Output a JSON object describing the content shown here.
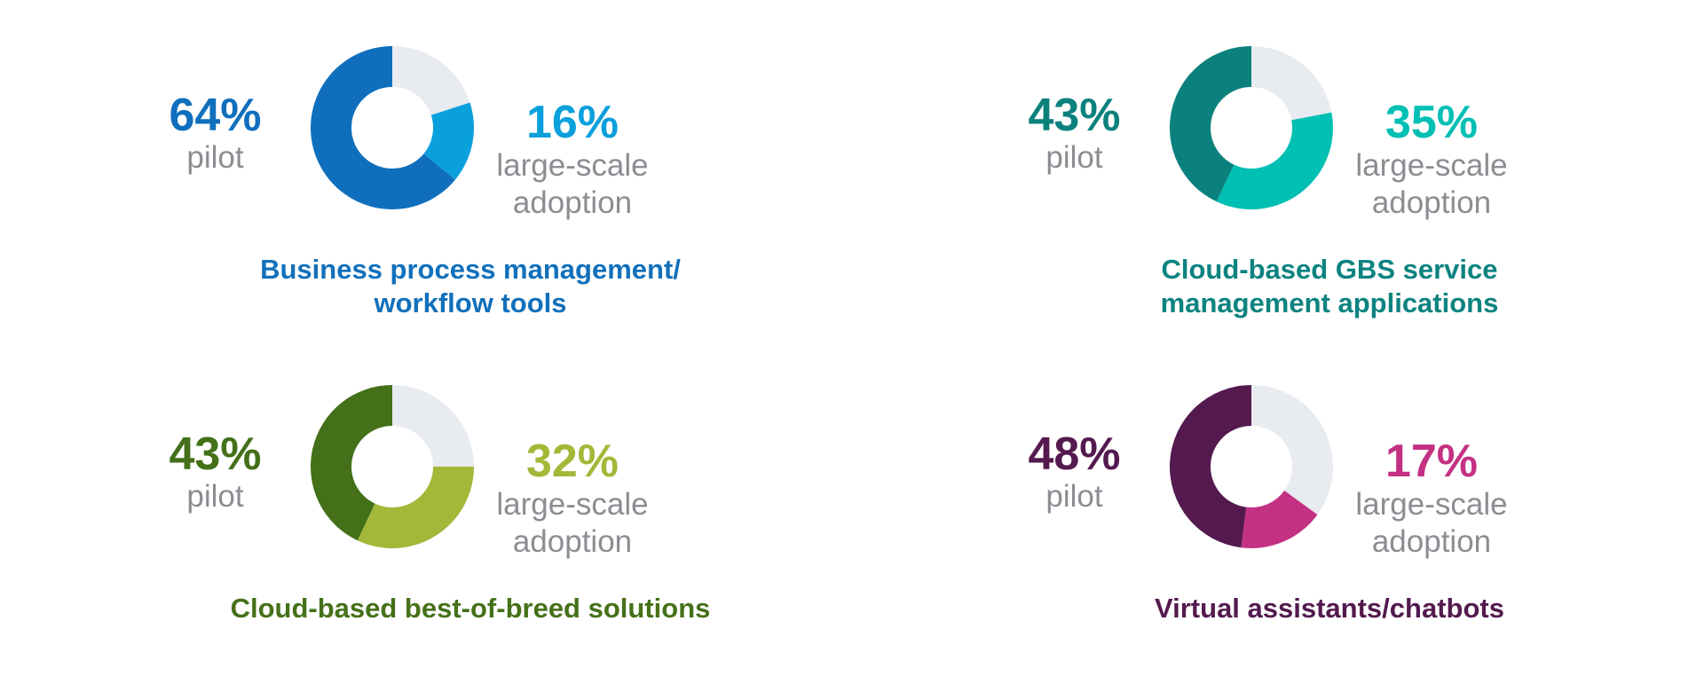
{
  "chart_data": [
    {
      "type": "pie",
      "title": "Business process management/ workflow tools",
      "title_lines": [
        "Business process management/",
        "workflow tools"
      ],
      "slices": [
        {
          "label": "pilot",
          "value": 64
        },
        {
          "label": "large-scale adoption",
          "value": 16
        }
      ],
      "pilot_text": "64%",
      "large_text": "16%",
      "colors": {
        "title": "#1170bb",
        "pilot": "#0f6fbd",
        "large": "#0aa0dc",
        "remainder": "#e8ebf0"
      }
    },
    {
      "type": "pie",
      "title": "Cloud-based GBS service management applications",
      "title_lines": [
        "Cloud-based GBS service",
        "management applications"
      ],
      "slices": [
        {
          "label": "pilot",
          "value": 43
        },
        {
          "label": "large-scale adoption",
          "value": 35
        }
      ],
      "pilot_text": "43%",
      "large_text": "35%",
      "colors": {
        "title": "#0c8380",
        "pilot": "#0b817d",
        "large": "#00bfb3",
        "remainder": "#e8ebf0"
      }
    },
    {
      "type": "pie",
      "title": "Cloud-based best-of-breed solutions",
      "title_lines": [
        "Cloud-based best-of-breed solutions"
      ],
      "slices": [
        {
          "label": "pilot",
          "value": 43
        },
        {
          "label": "large-scale adoption",
          "value": 32
        }
      ],
      "pilot_text": "43%",
      "large_text": "32%",
      "colors": {
        "title": "#457119",
        "pilot": "#437019",
        "large": "#a3b838",
        "remainder": "#e8ebf0"
      }
    },
    {
      "type": "pie",
      "title": "Virtual assistants/chatbots",
      "title_lines": [
        "Virtual assistants/chatbots"
      ],
      "slices": [
        {
          "label": "pilot",
          "value": 48
        },
        {
          "label": "large-scale adoption",
          "value": 17
        }
      ],
      "pilot_text": "48%",
      "large_text": "17%",
      "colors": {
        "title": "#531a4e",
        "pilot": "#541a4f",
        "large": "#c33183",
        "remainder": "#e8ebf0"
      }
    }
  ],
  "labels": {
    "pilot": "pilot",
    "large_line1": "large-scale",
    "large_line2": "adoption"
  }
}
